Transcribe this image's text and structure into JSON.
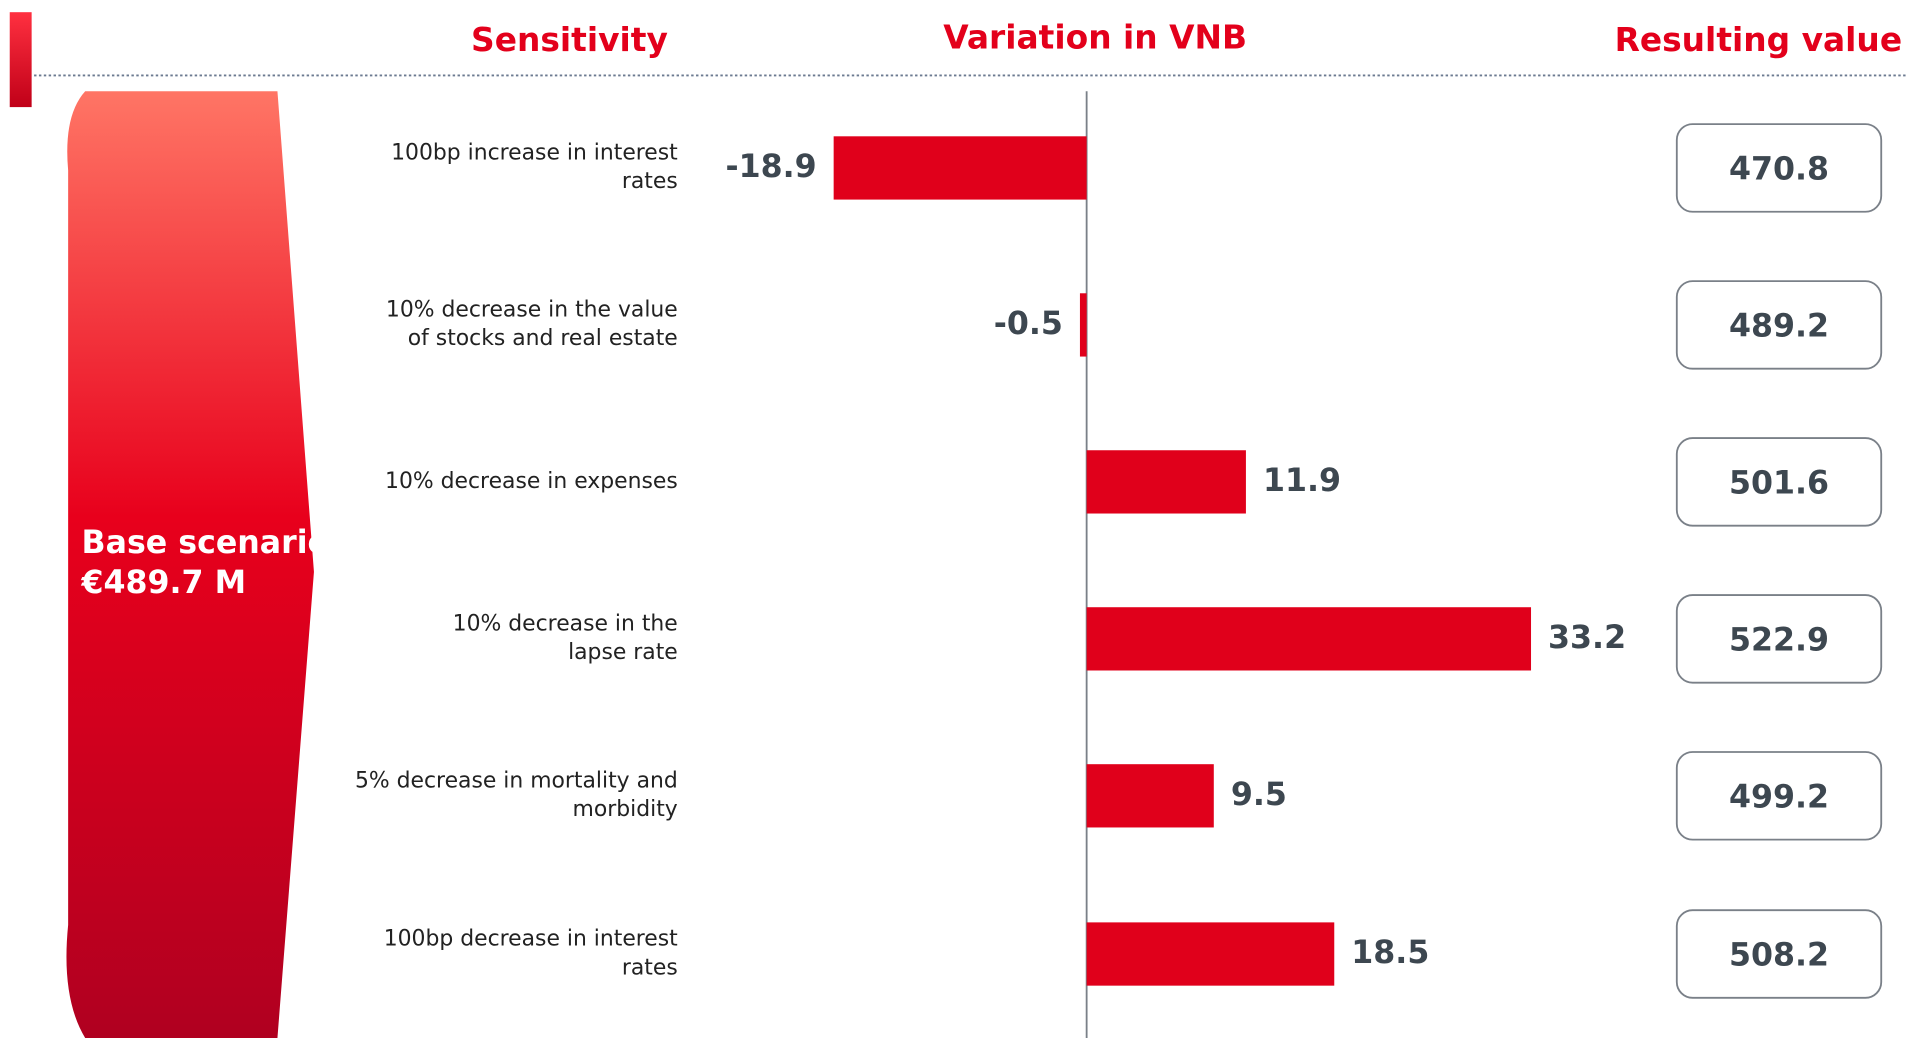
{
  "chart_data": {
    "type": "bar",
    "orientation": "horizontal",
    "headers": [
      "Sensitivity",
      "Variation in VNB",
      "Resulting value"
    ],
    "base_scenario": {
      "label": "Base scenario",
      "value_text": "€489.7 M"
    },
    "categories": [
      "100bp increase in interest\nrates",
      "10% decrease in the value\nof stocks and real estate",
      "10% decrease in expenses",
      "10% decrease in the\nlapse rate",
      "5% decrease in mortality and\nmorbidity",
      "100bp decrease in interest\nrates"
    ],
    "values": [
      -18.9,
      -0.5,
      11.9,
      33.2,
      9.5,
      18.5
    ],
    "resulting_values": [
      470.8,
      489.2,
      501.6,
      522.9,
      499.2,
      508.2
    ],
    "color": "#e0001b",
    "xlim": [
      -20,
      40
    ]
  }
}
